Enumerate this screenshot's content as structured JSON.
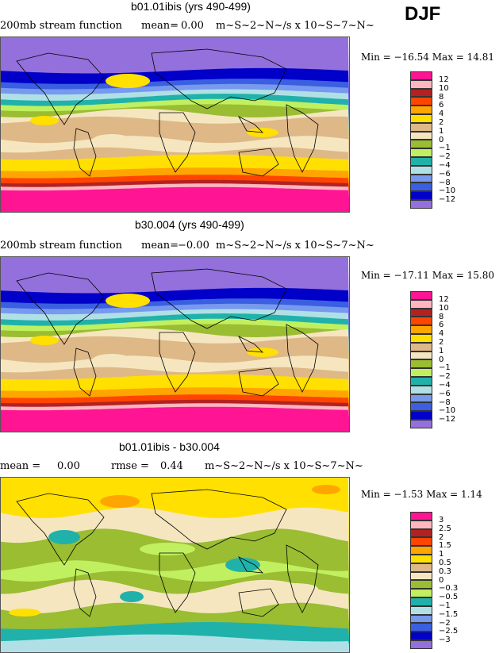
{
  "season": "DJF",
  "chart_data": [
    {
      "type": "heatmap",
      "subtype": "contour-map",
      "title": "b01.01ibis (yrs 490-499)",
      "variable": "200mb stream function",
      "mean_label": "mean=",
      "mean": "0.00",
      "units": "m~S~2~N~/s x 10~S~7~N~",
      "min_max": "Min = −16.54 Max =  14.81",
      "levels": [
        "12",
        "10",
        "8",
        "6",
        "4",
        "2",
        "1",
        "0",
        "−1",
        "−2",
        "−4",
        "−6",
        "−8",
        "−10",
        "−12"
      ]
    },
    {
      "type": "heatmap",
      "subtype": "contour-map",
      "title": "b30.004 (yrs 490-499)",
      "variable": "200mb stream function",
      "mean_label": "mean=",
      "mean": "−0.00",
      "units": "m~S~2~N~/s x 10~S~7~N~",
      "min_max": "Min = −17.11 Max =  15.80",
      "levels": [
        "12",
        "10",
        "8",
        "6",
        "4",
        "2",
        "1",
        "0",
        "−1",
        "−2",
        "−4",
        "−6",
        "−8",
        "−10",
        "−12"
      ]
    },
    {
      "type": "heatmap",
      "subtype": "contour-map",
      "title": "b01.01ibis - b30.004",
      "mean_label": "mean =",
      "mean": "0.00",
      "rmse_label": "rmse =",
      "rmse": "0.44",
      "units": "m~S~2~N~/s x 10~S~7~N~",
      "min_max": "Min =  −1.53 Max =   1.14",
      "levels": [
        "3",
        "2.5",
        "2",
        "1.5",
        "1",
        "0.5",
        "0.3",
        "0",
        "−0.3",
        "−0.5",
        "−1",
        "−1.5",
        "−2",
        "−2.5",
        "−3"
      ]
    }
  ],
  "colors": [
    "#ff1493",
    "#ffb6c1",
    "#b22222",
    "#ff4500",
    "#ffa500",
    "#ffe000",
    "#deb887",
    "#f5e6c0",
    "#9abd32",
    "#c0f060",
    "#20b2aa",
    "#b0e0e6",
    "#7799ee",
    "#3a5fe0",
    "#0000c8",
    "#9370db"
  ]
}
